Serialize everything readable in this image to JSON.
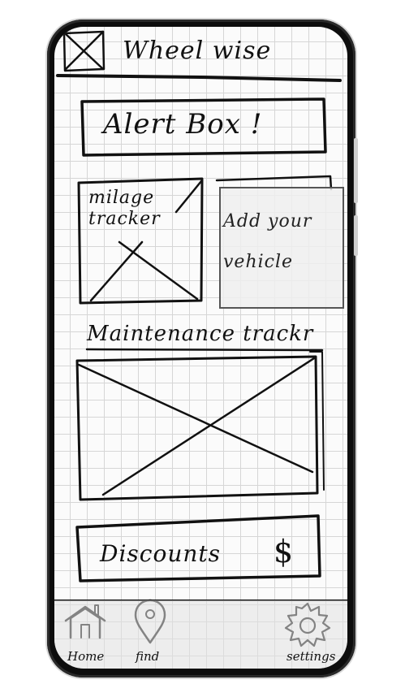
{
  "app": {
    "title": "Wheel wise"
  },
  "alert": {
    "label": "Alert Box !"
  },
  "cards": {
    "mileage": {
      "label": "milage tracker"
    },
    "add_vehicle": {
      "label": "Add your vehicle"
    }
  },
  "maintenance": {
    "label": "Maintenance trackr"
  },
  "discounts": {
    "label": "Discounts",
    "symbol": "$"
  },
  "tabbar": {
    "items": [
      {
        "label": "Home",
        "icon": "house-icon"
      },
      {
        "label": "find",
        "icon": "map-pin-icon"
      },
      {
        "label": "settings",
        "icon": "gear-icon"
      }
    ]
  },
  "colors": {
    "ink": "#111111",
    "grid": "#d6d6d6",
    "paper": "#fbfbfb",
    "frame": "#0d0d0d"
  }
}
